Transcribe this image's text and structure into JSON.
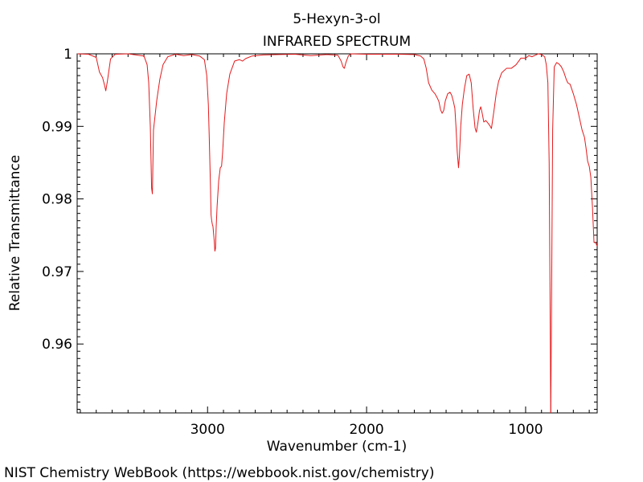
{
  "chart_data": {
    "type": "line",
    "title": "5-Hexyn-3-ol",
    "subtitle": "INFRARED SPECTRUM",
    "xlabel": "Wavenumber (cm-1)",
    "ylabel": "Relative Transmittance",
    "xlim": [
      3820,
      550
    ],
    "ylim": [
      0.9505,
      1.0
    ],
    "x_reversed": true,
    "grid": false,
    "x_ticks": [
      3000,
      2000,
      1000
    ],
    "x_tick_labels": [
      "3000",
      "2000",
      "1000"
    ],
    "y_ticks": [
      0.96,
      0.97,
      0.98,
      0.99,
      1.0
    ],
    "y_tick_labels": [
      "0.96",
      "0.97",
      "0.98",
      "0.99",
      "1"
    ],
    "series": [
      {
        "color": "#e41a1c",
        "points": [
          [
            3820,
            1.0
          ],
          [
            3750,
            0.99995
          ],
          [
            3700,
            0.9995
          ],
          [
            3680,
            0.9975
          ],
          [
            3660,
            0.9967
          ],
          [
            3648,
            0.9957
          ],
          [
            3640,
            0.9949
          ],
          [
            3630,
            0.9962
          ],
          [
            3610,
            0.9993
          ],
          [
            3580,
            0.99995
          ],
          [
            3500,
            1.0
          ],
          [
            3450,
            0.99985
          ],
          [
            3400,
            0.9997
          ],
          [
            3380,
            0.9985
          ],
          [
            3370,
            0.996
          ],
          [
            3360,
            0.99
          ],
          [
            3352,
            0.9815
          ],
          [
            3347,
            0.9807
          ],
          [
            3340,
            0.9895
          ],
          [
            3320,
            0.9935
          ],
          [
            3300,
            0.9965
          ],
          [
            3280,
            0.9985
          ],
          [
            3250,
            0.9996
          ],
          [
            3200,
            0.99995
          ],
          [
            3150,
            0.99975
          ],
          [
            3100,
            0.9999
          ],
          [
            3050,
            0.9997
          ],
          [
            3020,
            0.9992
          ],
          [
            3005,
            0.997
          ],
          [
            2995,
            0.993
          ],
          [
            2990,
            0.989
          ],
          [
            2982,
            0.982
          ],
          [
            2978,
            0.9778
          ],
          [
            2974,
            0.977
          ],
          [
            2970,
            0.9765
          ],
          [
            2966,
            0.9762
          ],
          [
            2962,
            0.9752
          ],
          [
            2958,
            0.9742
          ],
          [
            2954,
            0.9728
          ],
          [
            2950,
            0.9732
          ],
          [
            2946,
            0.976
          ],
          [
            2940,
            0.979
          ],
          [
            2930,
            0.9825
          ],
          [
            2920,
            0.9843
          ],
          [
            2912,
            0.9845
          ],
          [
            2905,
            0.9865
          ],
          [
            2895,
            0.9905
          ],
          [
            2880,
            0.9945
          ],
          [
            2860,
            0.9972
          ],
          [
            2830,
            0.999
          ],
          [
            2800,
            0.9992
          ],
          [
            2780,
            0.999
          ],
          [
            2760,
            0.99935
          ],
          [
            2720,
            0.9997
          ],
          [
            2650,
            0.99985
          ],
          [
            2550,
            0.9999
          ],
          [
            2450,
            0.99995
          ],
          [
            2350,
            0.99975
          ],
          [
            2250,
            0.9999
          ],
          [
            2180,
            0.9998
          ],
          [
            2160,
            0.999
          ],
          [
            2148,
            0.9982
          ],
          [
            2140,
            0.998
          ],
          [
            2130,
            0.9988
          ],
          [
            2115,
            0.9997
          ],
          [
            2100,
            1.0
          ],
          [
            2000,
            0.99995
          ],
          [
            1900,
            0.99995
          ],
          [
            1800,
            0.99995
          ],
          [
            1700,
            0.9999
          ],
          [
            1660,
            0.9997
          ],
          [
            1640,
            0.9993
          ],
          [
            1625,
            0.998
          ],
          [
            1610,
            0.996
          ],
          [
            1590,
            0.995
          ],
          [
            1570,
            0.9945
          ],
          [
            1555,
            0.9939
          ],
          [
            1545,
            0.9934
          ],
          [
            1535,
            0.9923
          ],
          [
            1525,
            0.9918
          ],
          [
            1515,
            0.9922
          ],
          [
            1505,
            0.9935
          ],
          [
            1490,
            0.9945
          ],
          [
            1475,
            0.9947
          ],
          [
            1465,
            0.9943
          ],
          [
            1455,
            0.9935
          ],
          [
            1445,
            0.9925
          ],
          [
            1438,
            0.99
          ],
          [
            1430,
            0.9865
          ],
          [
            1422,
            0.9843
          ],
          [
            1416,
            0.986
          ],
          [
            1408,
            0.99
          ],
          [
            1398,
            0.993
          ],
          [
            1385,
            0.9952
          ],
          [
            1370,
            0.997
          ],
          [
            1355,
            0.9972
          ],
          [
            1342,
            0.996
          ],
          [
            1330,
            0.9925
          ],
          [
            1318,
            0.9898
          ],
          [
            1310,
            0.9892
          ],
          [
            1300,
            0.9905
          ],
          [
            1290,
            0.9922
          ],
          [
            1282,
            0.9927
          ],
          [
            1273,
            0.9918
          ],
          [
            1263,
            0.9906
          ],
          [
            1250,
            0.9908
          ],
          [
            1235,
            0.9904
          ],
          [
            1222,
            0.99
          ],
          [
            1215,
            0.9897
          ],
          [
            1200,
            0.992
          ],
          [
            1185,
            0.9945
          ],
          [
            1170,
            0.9962
          ],
          [
            1150,
            0.9974
          ],
          [
            1120,
            0.998
          ],
          [
            1090,
            0.998
          ],
          [
            1060,
            0.9985
          ],
          [
            1030,
            0.9994
          ],
          [
            1000,
            0.9994
          ],
          [
            980,
            0.99975
          ],
          [
            960,
            0.9996
          ],
          [
            940,
            0.9998
          ],
          [
            920,
            1.0
          ],
          [
            900,
            0.9999
          ],
          [
            880,
            0.9996
          ],
          [
            870,
            0.9985
          ],
          [
            860,
            0.996
          ],
          [
            852,
            0.985
          ],
          [
            846,
            0.965
          ],
          [
            842,
            0.9505
          ]
        ]
      },
      {
        "color": "#e41a1c",
        "points": [
          [
            842,
            0.9505
          ],
          [
            838,
            0.962
          ],
          [
            830,
            0.9895
          ],
          [
            820,
            0.9982
          ],
          [
            805,
            0.9988
          ],
          [
            790,
            0.9986
          ],
          [
            775,
            0.9982
          ],
          [
            760,
            0.9975
          ],
          [
            745,
            0.9965
          ],
          [
            735,
            0.996
          ],
          [
            720,
            0.9958
          ],
          [
            700,
            0.9945
          ],
          [
            680,
            0.993
          ],
          [
            660,
            0.991
          ],
          [
            645,
            0.9895
          ],
          [
            630,
            0.9885
          ],
          [
            620,
            0.987
          ],
          [
            610,
            0.9852
          ],
          [
            600,
            0.9845
          ],
          [
            590,
            0.983
          ],
          [
            580,
            0.979
          ],
          [
            570,
            0.974
          ],
          [
            560,
            0.974
          ],
          [
            550,
            0.9735
          ]
        ]
      }
    ]
  },
  "footer": "NIST Chemistry WebBook (https://webbook.nist.gov/chemistry)"
}
